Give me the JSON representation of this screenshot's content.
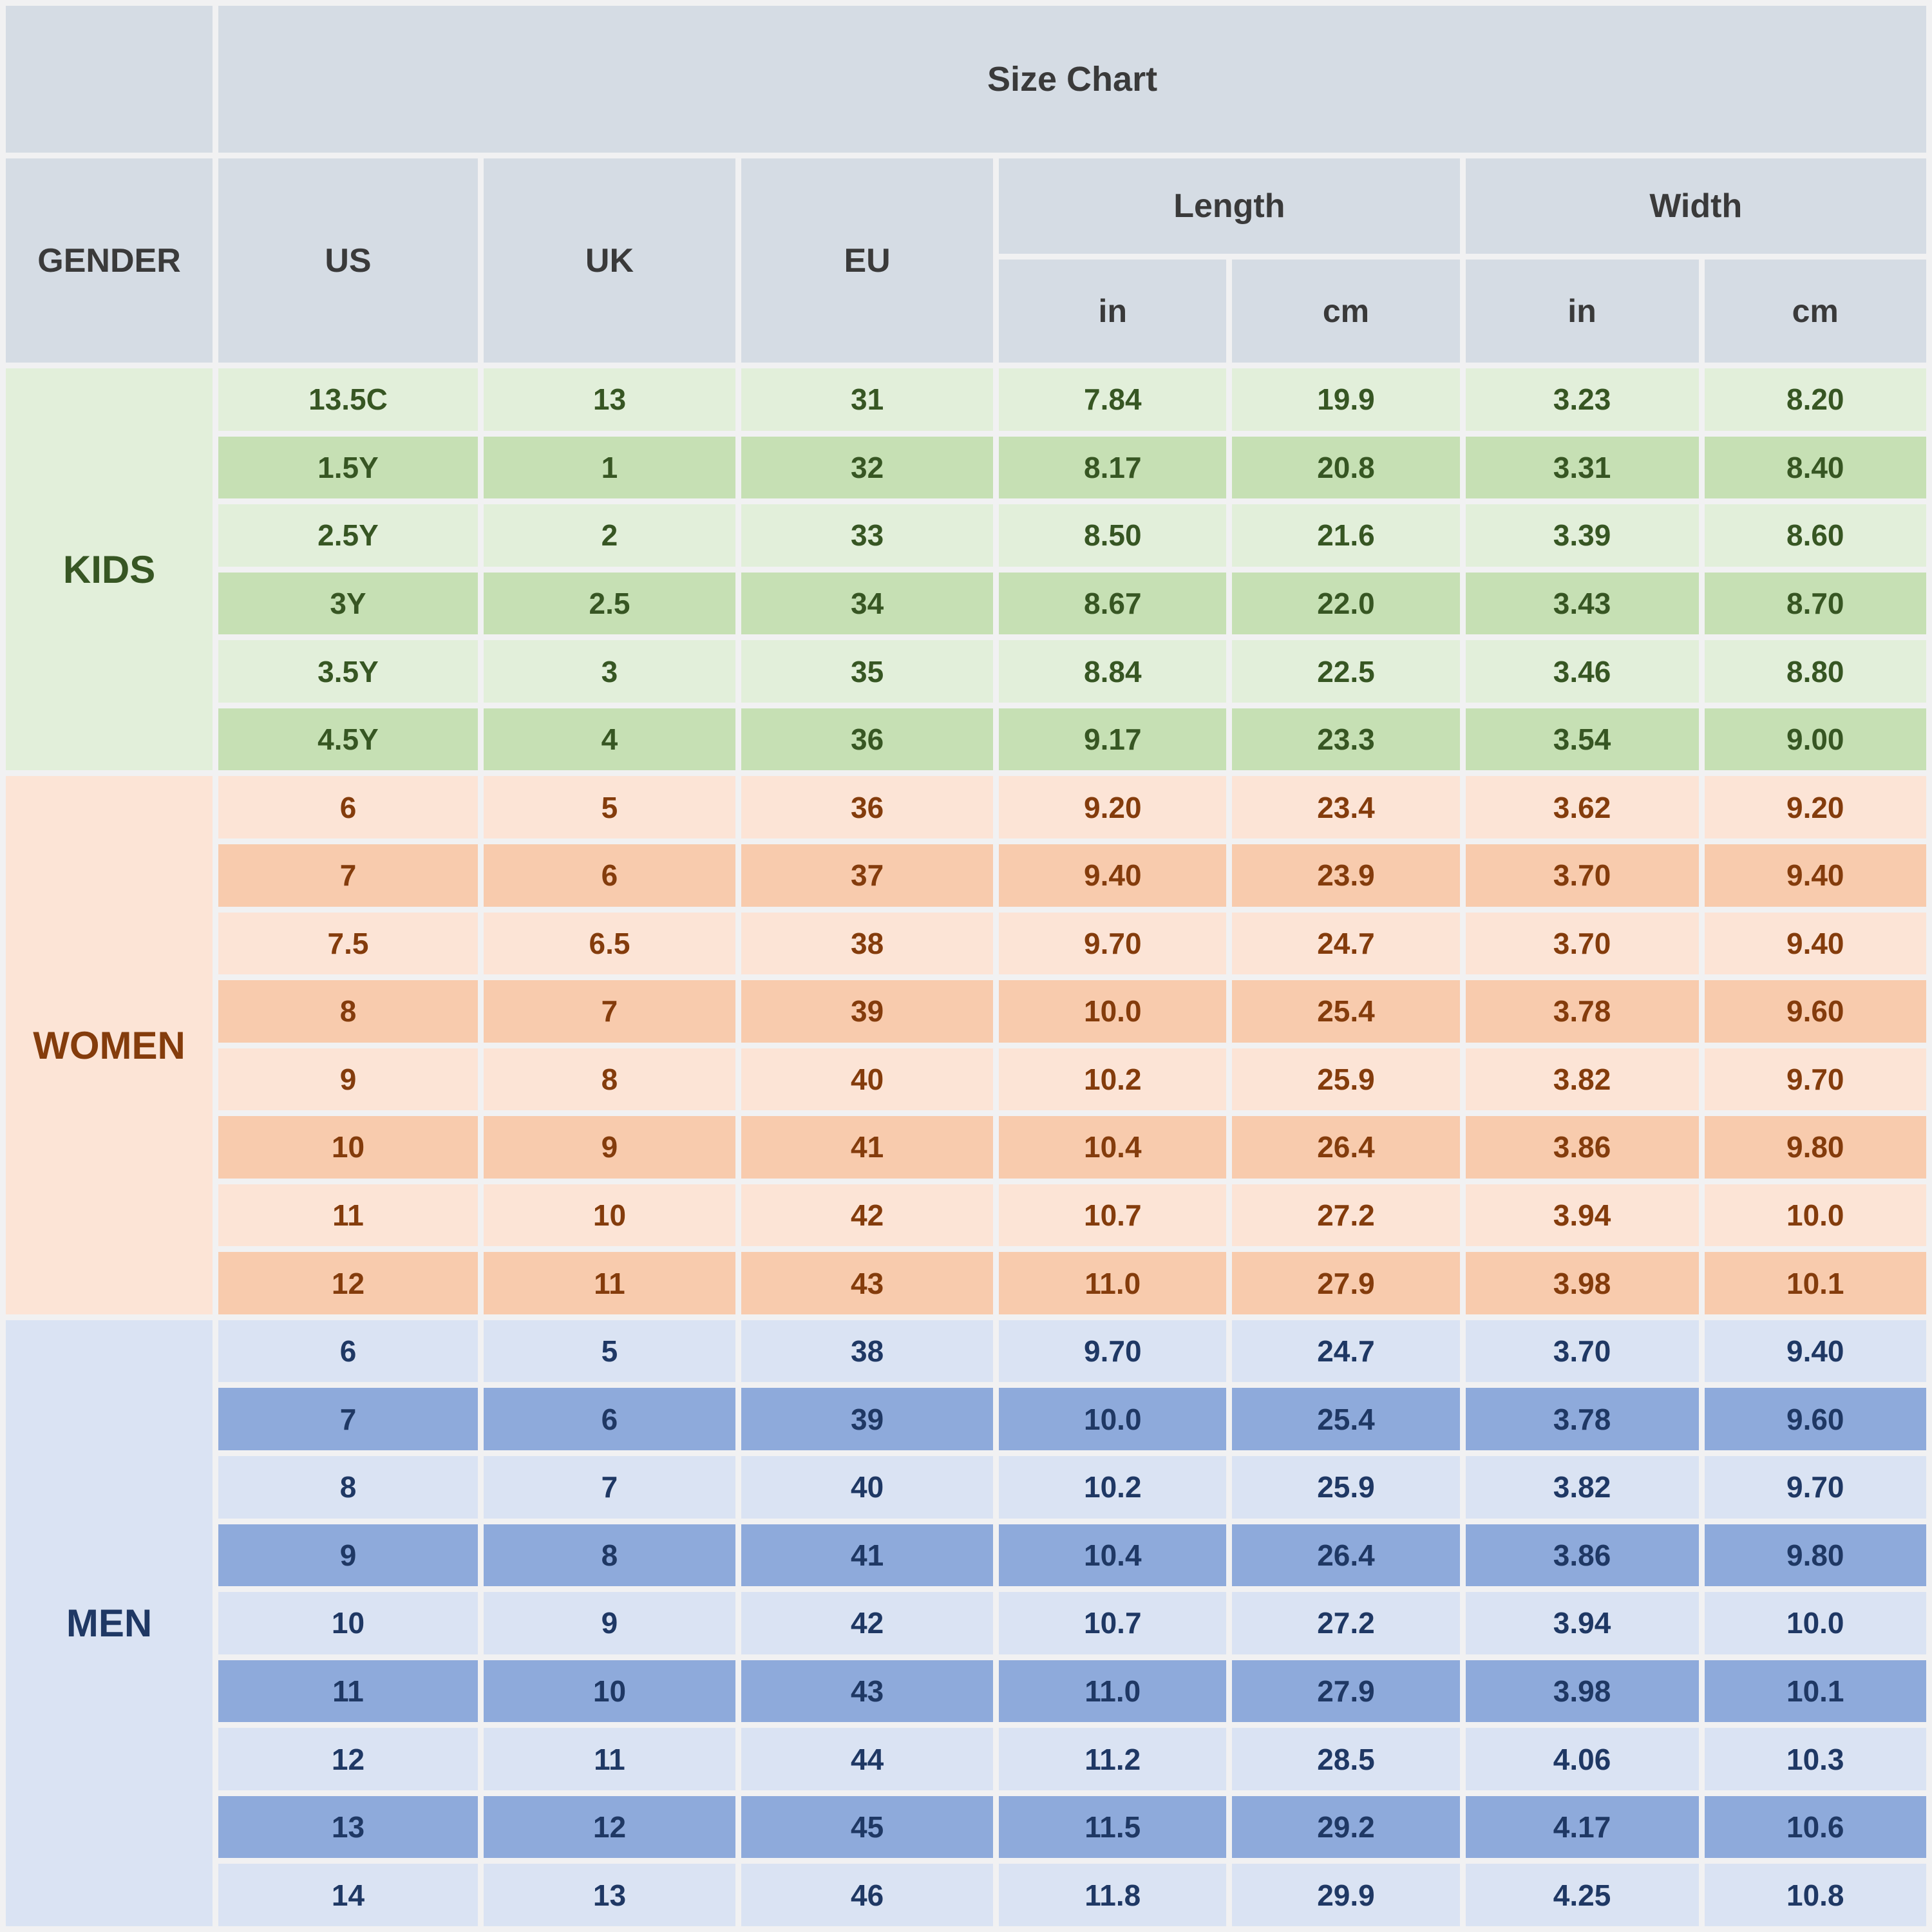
{
  "header": {
    "title": "Size Chart",
    "gender": "GENDER",
    "us": "US",
    "uk": "UK",
    "eu": "EU",
    "length": "Length",
    "width": "Width",
    "in": "in",
    "cm": "cm"
  },
  "colors": {
    "header_bg": "#D5DCE4",
    "header_text": "#3A3A3A",
    "gap_bg": "#F1F1F2",
    "green_light": "#E2EFDA",
    "green_medium": "#C6E0B4",
    "green_text": "#375623",
    "orange_light": "#FCE4D6",
    "orange_medium": "#F8CBAD",
    "orange_text": "#843C0C",
    "blue_light": "#DAE3F3",
    "blue_medium": "#8EAADB",
    "blue_text": "#1F3864"
  },
  "chart_data": {
    "type": "table",
    "title": "Size Chart",
    "columns": [
      "GENDER",
      "US",
      "UK",
      "EU",
      "Length (in)",
      "Length (cm)",
      "Width (in)",
      "Width (cm)"
    ],
    "sections": [
      {
        "gender": "KIDS",
        "theme": "green",
        "rows": [
          [
            "13.5C",
            "13",
            "31",
            "7.84",
            "19.9",
            "3.23",
            "8.20"
          ],
          [
            "1.5Y",
            "1",
            "32",
            "8.17",
            "20.8",
            "3.31",
            "8.40"
          ],
          [
            "2.5Y",
            "2",
            "33",
            "8.50",
            "21.6",
            "3.39",
            "8.60"
          ],
          [
            "3Y",
            "2.5",
            "34",
            "8.67",
            "22.0",
            "3.43",
            "8.70"
          ],
          [
            "3.5Y",
            "3",
            "35",
            "8.84",
            "22.5",
            "3.46",
            "8.80"
          ],
          [
            "4.5Y",
            "4",
            "36",
            "9.17",
            "23.3",
            "3.54",
            "9.00"
          ]
        ]
      },
      {
        "gender": "WOMEN",
        "theme": "orange",
        "rows": [
          [
            "6",
            "5",
            "36",
            "9.20",
            "23.4",
            "3.62",
            "9.20"
          ],
          [
            "7",
            "6",
            "37",
            "9.40",
            "23.9",
            "3.70",
            "9.40"
          ],
          [
            "7.5",
            "6.5",
            "38",
            "9.70",
            "24.7",
            "3.70",
            "9.40"
          ],
          [
            "8",
            "7",
            "39",
            "10.0",
            "25.4",
            "3.78",
            "9.60"
          ],
          [
            "9",
            "8",
            "40",
            "10.2",
            "25.9",
            "3.82",
            "9.70"
          ],
          [
            "10",
            "9",
            "41",
            "10.4",
            "26.4",
            "3.86",
            "9.80"
          ],
          [
            "11",
            "10",
            "42",
            "10.7",
            "27.2",
            "3.94",
            "10.0"
          ],
          [
            "12",
            "11",
            "43",
            "11.0",
            "27.9",
            "3.98",
            "10.1"
          ]
        ]
      },
      {
        "gender": "MEN",
        "theme": "blue",
        "rows": [
          [
            "6",
            "5",
            "38",
            "9.70",
            "24.7",
            "3.70",
            "9.40"
          ],
          [
            "7",
            "6",
            "39",
            "10.0",
            "25.4",
            "3.78",
            "9.60"
          ],
          [
            "8",
            "7",
            "40",
            "10.2",
            "25.9",
            "3.82",
            "9.70"
          ],
          [
            "9",
            "8",
            "41",
            "10.4",
            "26.4",
            "3.86",
            "9.80"
          ],
          [
            "10",
            "9",
            "42",
            "10.7",
            "27.2",
            "3.94",
            "10.0"
          ],
          [
            "11",
            "10",
            "43",
            "11.0",
            "27.9",
            "3.98",
            "10.1"
          ],
          [
            "12",
            "11",
            "44",
            "11.2",
            "28.5",
            "4.06",
            "10.3"
          ],
          [
            "13",
            "12",
            "45",
            "11.5",
            "29.2",
            "4.17",
            "10.6"
          ],
          [
            "14",
            "13",
            "46",
            "11.8",
            "29.9",
            "4.25",
            "10.8"
          ]
        ]
      }
    ]
  }
}
